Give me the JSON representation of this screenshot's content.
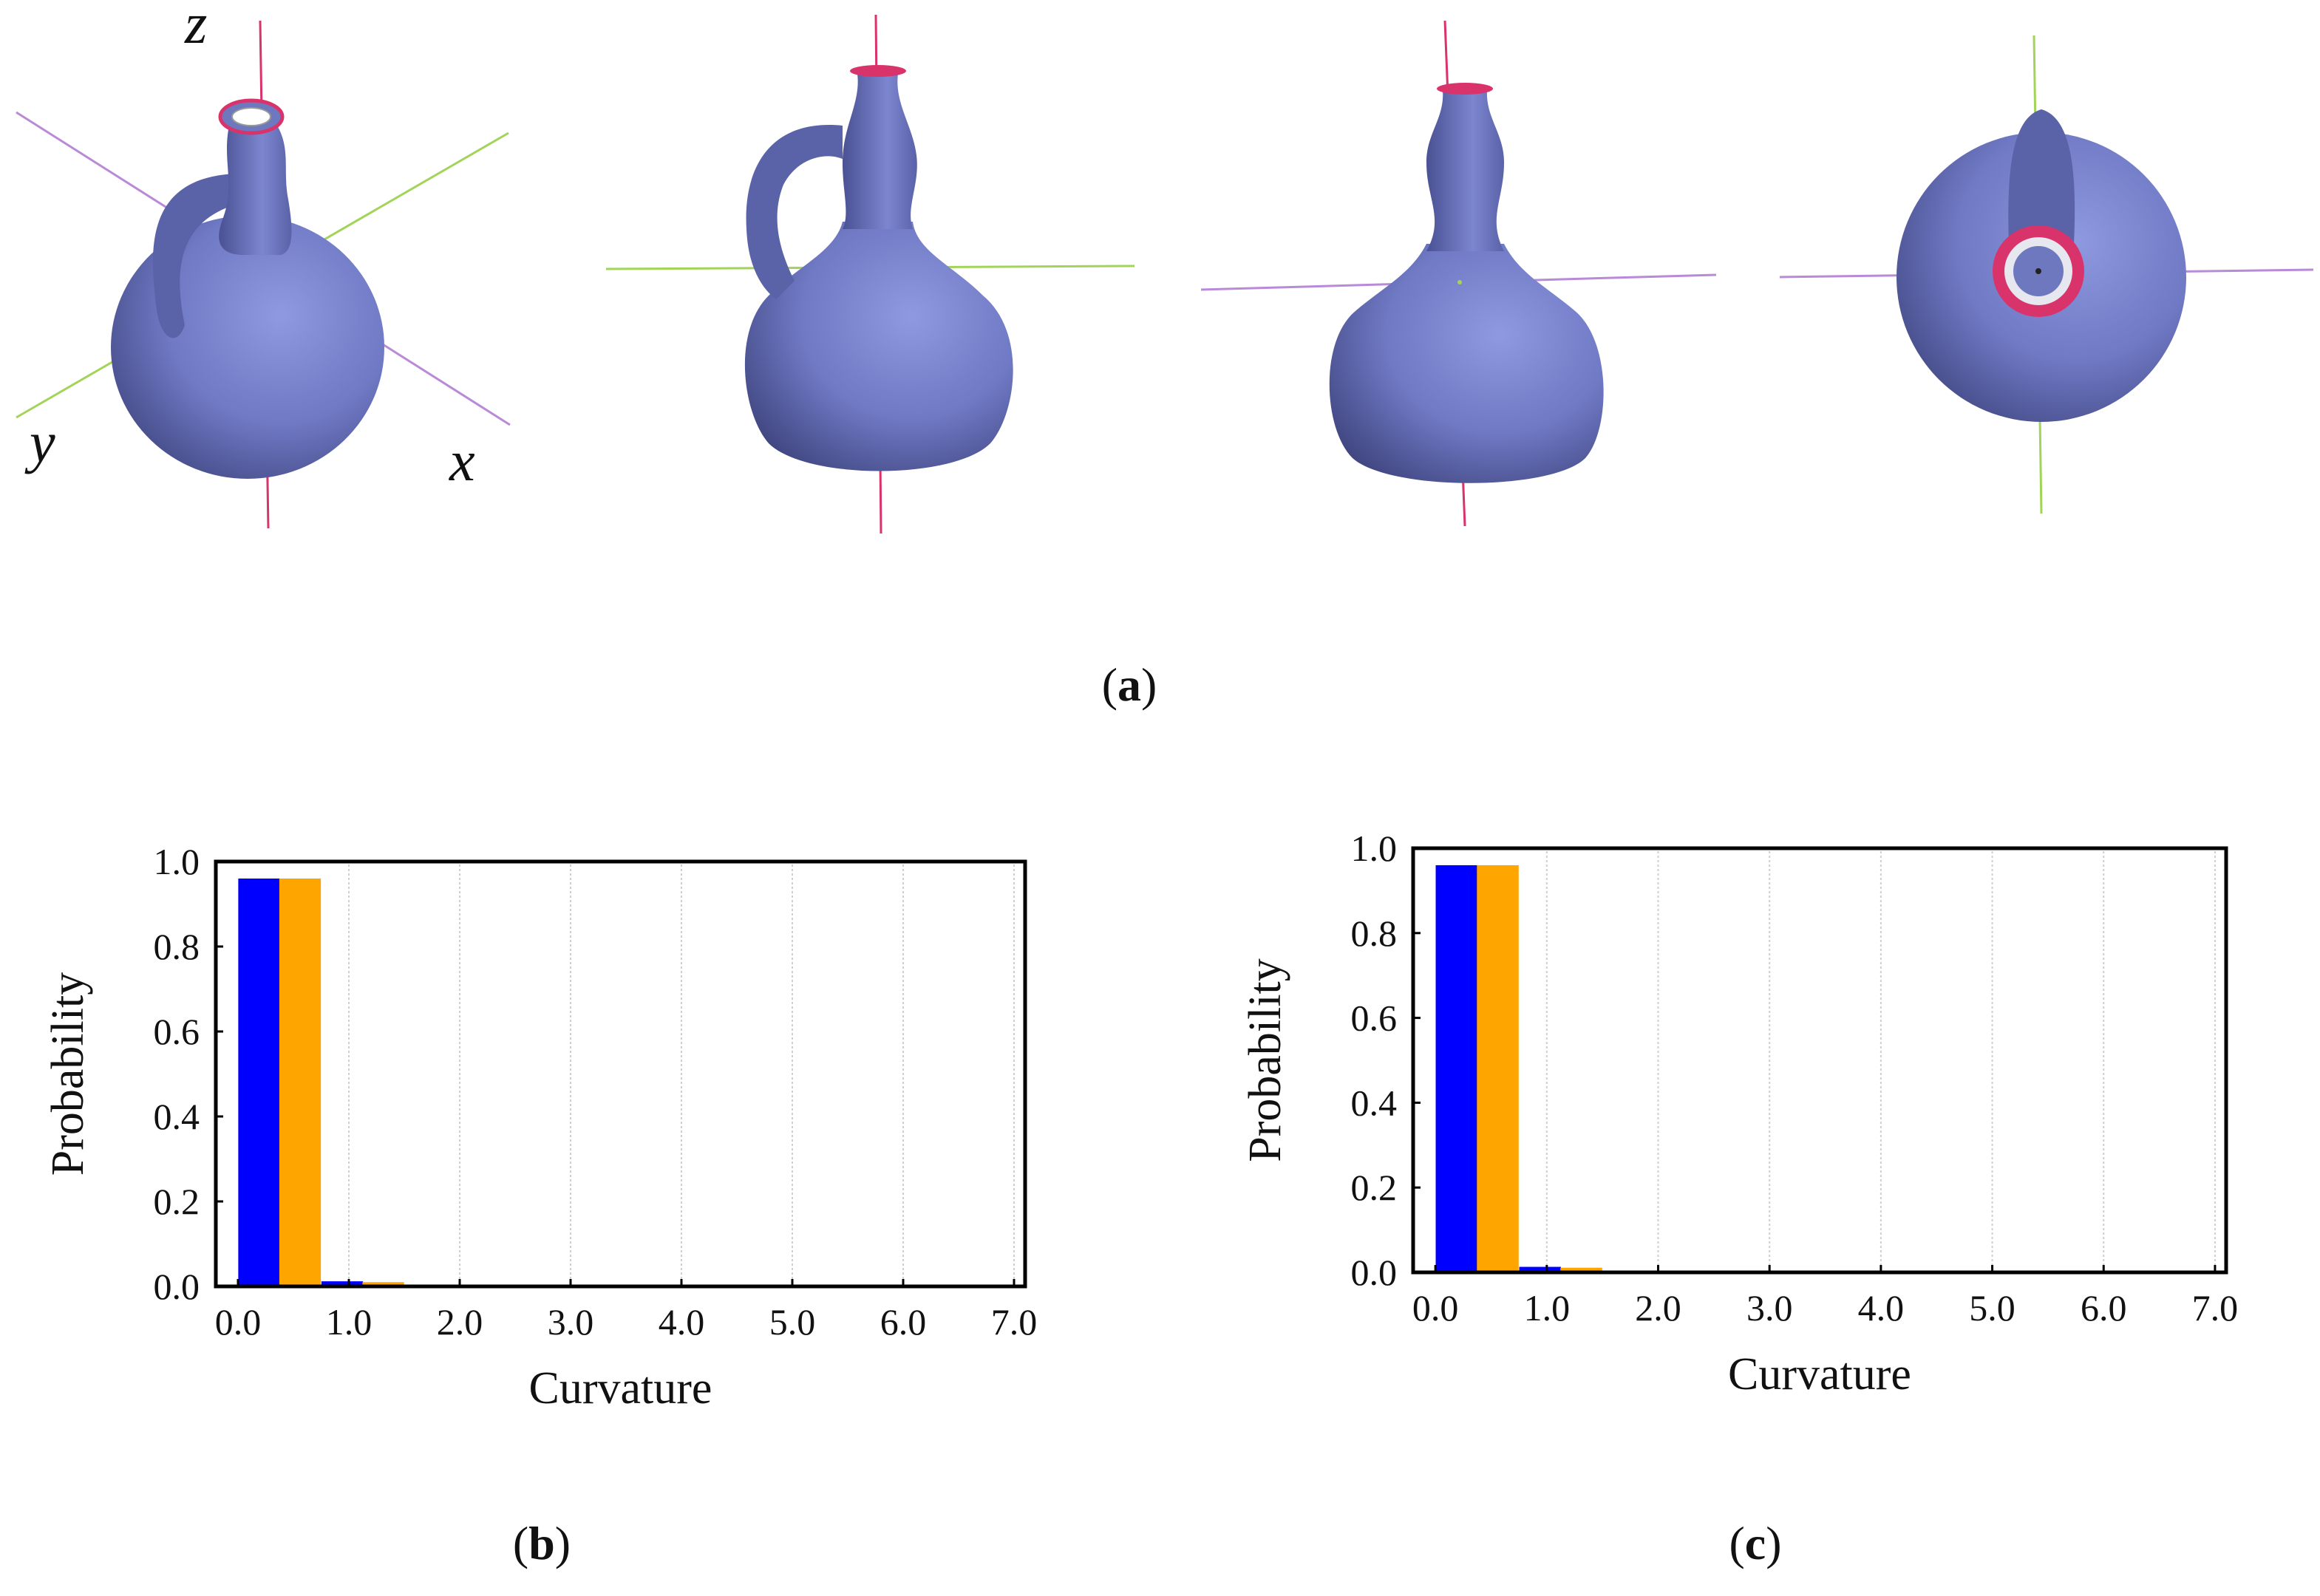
{
  "figure": {
    "labels": {
      "a": "a",
      "b": "b",
      "c": "c"
    },
    "axes_letters": {
      "z": "z",
      "y": "y",
      "x": "x"
    },
    "colors": {
      "vessel": "#7c86cf",
      "vessel_shadow": "#4a5194",
      "rim": "#d8336b",
      "axis_green": "#a3d45a",
      "axis_purple": "#b98ad8",
      "axis_red": "#d8336b",
      "series_1": "#0000ff",
      "series_2": "#ffa500"
    },
    "views": [
      "perspective-view",
      "front-view-handle-left",
      "front-view-rotated",
      "top-view"
    ]
  },
  "chart_data": [
    {
      "panel": "b",
      "type": "bar",
      "xlabel": "Curvature",
      "ylabel": "Probability",
      "ylim": [
        0,
        1.0
      ],
      "xlim": [
        -0.2,
        7.1
      ],
      "xticks": [
        "0.0",
        "1.0",
        "2.0",
        "3.0",
        "4.0",
        "5.0",
        "6.0",
        "7.0"
      ],
      "yticks": [
        "0.0",
        "0.2",
        "0.4",
        "0.6",
        "0.8",
        "1.0"
      ],
      "grid": "vertical",
      "bin_width": 0.375,
      "series": [
        {
          "color": "#0000ff",
          "x": [
            0.19,
            0.94,
            1.69,
            2.44
          ],
          "values": [
            0.96,
            0.012,
            0.003,
            0.002
          ]
        },
        {
          "color": "#ffa500",
          "x": [
            0.56,
            1.31,
            2.06,
            2.81
          ],
          "values": [
            0.96,
            0.01,
            0.003,
            0.002
          ]
        }
      ]
    },
    {
      "panel": "c",
      "type": "bar",
      "xlabel": "Curvature",
      "ylabel": "Probability",
      "ylim": [
        0,
        1.0
      ],
      "xlim": [
        -0.2,
        7.1
      ],
      "xticks": [
        "0.0",
        "1.0",
        "2.0",
        "3.0",
        "4.0",
        "5.0",
        "6.0",
        "7.0"
      ],
      "yticks": [
        "0.0",
        "0.2",
        "0.4",
        "0.6",
        "0.8",
        "1.0"
      ],
      "grid": "vertical",
      "bin_width": 0.375,
      "series": [
        {
          "color": "#0000ff",
          "x": [
            0.19,
            0.94,
            1.69,
            2.44
          ],
          "values": [
            0.96,
            0.013,
            0.004,
            0.002
          ]
        },
        {
          "color": "#ffa500",
          "x": [
            0.56,
            1.31,
            2.06,
            2.81
          ],
          "values": [
            0.96,
            0.011,
            0.003,
            0.002
          ]
        }
      ]
    }
  ]
}
